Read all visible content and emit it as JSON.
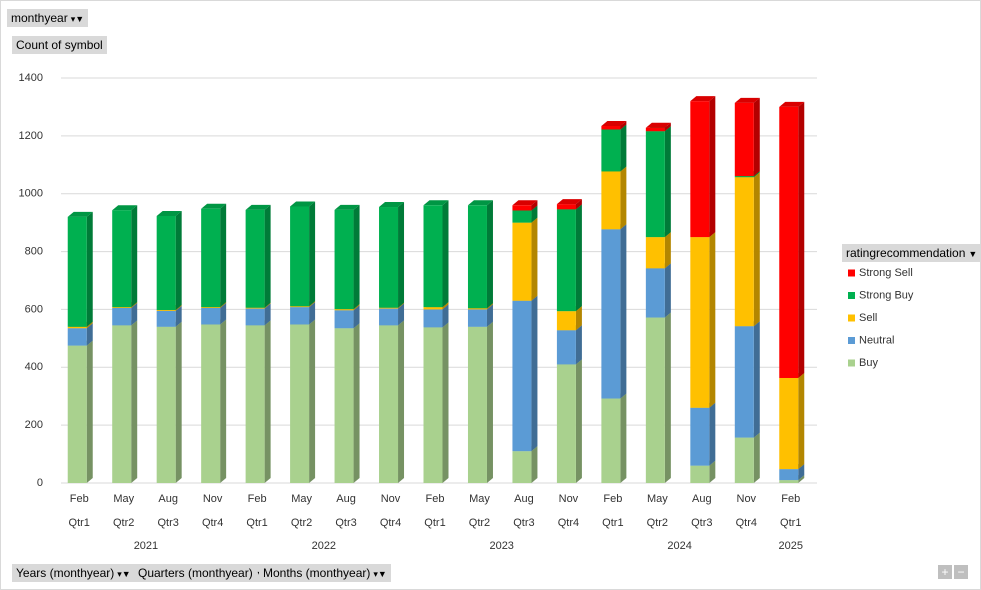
{
  "ui": {
    "filter_button": "monthyear",
    "value_button": "Count of symbol",
    "legend_button": "ratingrecommendation",
    "axis_buttons": [
      "Years (monthyear)",
      "Quarters (monthyear)",
      "Months (monthyear)"
    ]
  },
  "chart_data": {
    "type": "stacked-bar-3d",
    "categories": [
      "Feb",
      "May",
      "Aug",
      "Nov",
      "Feb",
      "May",
      "Aug",
      "Nov",
      "Feb",
      "May",
      "Aug",
      "Nov",
      "Feb",
      "May",
      "Aug",
      "Nov",
      "Feb"
    ],
    "quarters": [
      "Qtr1",
      "Qtr2",
      "Qtr3",
      "Qtr4",
      "Qtr1",
      "Qtr2",
      "Qtr3",
      "Qtr4",
      "Qtr1",
      "Qtr2",
      "Qtr3",
      "Qtr4",
      "Qtr1",
      "Qtr2",
      "Qtr3",
      "Qtr4",
      "Qtr1"
    ],
    "years": [
      "2021",
      null,
      null,
      null,
      "2022",
      null,
      null,
      null,
      "2023",
      null,
      null,
      null,
      "2024",
      null,
      null,
      null,
      "2025"
    ],
    "ylim": [
      0,
      1400
    ],
    "yticks": [
      0,
      200,
      400,
      600,
      800,
      1000,
      1200,
      1400
    ],
    "grid": true,
    "series": [
      {
        "name": "Buy",
        "color": "#a9d18e",
        "values": [
          475,
          545,
          540,
          548,
          545,
          548,
          535,
          545,
          538,
          540,
          110,
          410,
          292,
          572,
          60,
          157,
          10
        ]
      },
      {
        "name": "Neutral",
        "color": "#5b9bd5",
        "values": [
          60,
          60,
          55,
          57,
          58,
          60,
          62,
          58,
          62,
          60,
          520,
          118,
          585,
          170,
          200,
          385,
          38
        ]
      },
      {
        "name": "Sell",
        "color": "#ffc000",
        "values": [
          5,
          3,
          3,
          3,
          3,
          3,
          4,
          3,
          8,
          4,
          270,
          66,
          200,
          108,
          590,
          515,
          315
        ]
      },
      {
        "name": "Strong Buy",
        "color": "#00b050",
        "values": [
          380,
          335,
          325,
          340,
          338,
          345,
          343,
          348,
          352,
          356,
          42,
          352,
          145,
          366,
          0,
          4,
          0
        ]
      },
      {
        "name": "Strong Sell",
        "color": "#ff0000",
        "values": [
          0,
          0,
          0,
          0,
          0,
          0,
          0,
          0,
          0,
          0,
          18,
          18,
          12,
          12,
          470,
          253,
          937
        ]
      }
    ]
  }
}
